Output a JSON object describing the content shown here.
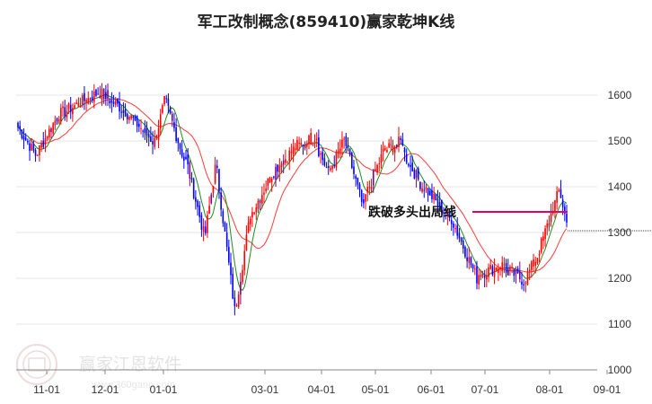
{
  "chart_data": {
    "type": "candlestick",
    "title": "军工改制概念(859410)赢家乾坤K线",
    "ylim": [
      1000,
      1650
    ],
    "yticks": [
      1600,
      1500,
      1400,
      1300,
      1200,
      1100,
      1000
    ],
    "xticks": [
      "11-01",
      "12-01",
      "01-01",
      "03-01",
      "04-01",
      "05-01",
      "06-01",
      "07-01",
      "08-01",
      "09-01"
    ],
    "grid": true,
    "annotation": {
      "text": "跌破多头出局线",
      "level": 1345,
      "ref_line_level": 1304
    },
    "segments": [
      {
        "count": 10,
        "start": 1530,
        "end": 1470,
        "trend": "down"
      },
      {
        "count": 12,
        "start": 1475,
        "end": 1560,
        "trend": "up"
      },
      {
        "count": 20,
        "start": 1560,
        "end": 1605,
        "trend": "up"
      },
      {
        "count": 14,
        "start": 1605,
        "end": 1565,
        "trend": "down"
      },
      {
        "count": 14,
        "start": 1560,
        "end": 1500,
        "trend": "down"
      },
      {
        "count": 6,
        "start": 1500,
        "end": 1585,
        "trend": "up"
      },
      {
        "count": 10,
        "start": 1580,
        "end": 1460,
        "trend": "down"
      },
      {
        "count": 10,
        "start": 1460,
        "end": 1300,
        "trend": "down"
      },
      {
        "count": 6,
        "start": 1300,
        "end": 1440,
        "trend": "up"
      },
      {
        "count": 10,
        "start": 1430,
        "end": 1130,
        "trend": "down"
      },
      {
        "count": 8,
        "start": 1150,
        "end": 1340,
        "trend": "up"
      },
      {
        "count": 12,
        "start": 1345,
        "end": 1435,
        "trend": "up"
      },
      {
        "count": 12,
        "start": 1440,
        "end": 1490,
        "trend": "up"
      },
      {
        "count": 10,
        "start": 1490,
        "end": 1510,
        "trend": "up"
      },
      {
        "count": 6,
        "start": 1480,
        "end": 1430,
        "trend": "down"
      },
      {
        "count": 8,
        "start": 1440,
        "end": 1500,
        "trend": "up"
      },
      {
        "count": 10,
        "start": 1490,
        "end": 1350,
        "trend": "down"
      },
      {
        "count": 10,
        "start": 1380,
        "end": 1475,
        "trend": "up"
      },
      {
        "count": 10,
        "start": 1480,
        "end": 1500,
        "trend": "up"
      },
      {
        "count": 10,
        "start": 1470,
        "end": 1400,
        "trend": "down"
      },
      {
        "count": 14,
        "start": 1400,
        "end": 1330,
        "trend": "down"
      },
      {
        "count": 14,
        "start": 1330,
        "end": 1200,
        "trend": "down"
      },
      {
        "count": 14,
        "start": 1210,
        "end": 1230,
        "trend": "up"
      },
      {
        "count": 10,
        "start": 1220,
        "end": 1195,
        "trend": "down"
      },
      {
        "count": 6,
        "start": 1200,
        "end": 1240,
        "trend": "up"
      },
      {
        "count": 12,
        "start": 1250,
        "end": 1390,
        "trend": "up"
      },
      {
        "count": 4,
        "start": 1380,
        "end": 1320,
        "trend": "down"
      }
    ]
  }
}
